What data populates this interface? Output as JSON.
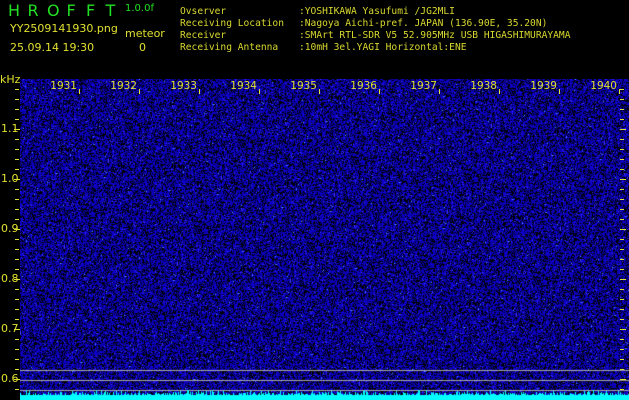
{
  "header": {
    "app_letters": [
      "H",
      "R",
      "O",
      "F",
      "F",
      "T"
    ],
    "version": "1.0.0f",
    "filename": "YY2509141930.png",
    "datetime": "25.09.14 19:30",
    "meteor_label": "meteor",
    "meteor_count": "0"
  },
  "info": [
    {
      "label": "Ovserver",
      "value": ":YOSHIKAWA Yasufumi /JG2MLI"
    },
    {
      "label": "Receiving Location",
      "value": ":Nagoya Aichi-pref. JAPAN (136.90E, 35.20N)"
    },
    {
      "label": "Receiver",
      "value": ":SMArt RTL-SDR V5 52.905MHz USB HIGASHIMURAYAMA"
    },
    {
      "label": "Receiving Antenna",
      "value": ":10mH 3el.YAGI Horizontal:ENE"
    }
  ],
  "spectrogram": {
    "y_unit": "kHz",
    "time_labels": [
      "1931",
      "1932",
      "1933",
      "1934",
      "1935",
      "1936",
      "1937",
      "1938",
      "1939",
      "1940"
    ],
    "freq_labels": [
      "1.1",
      "1.0",
      "0.9",
      "0.8",
      "0.7",
      "0.6"
    ],
    "colors": {
      "background": "#000000",
      "noise": "#1010c0",
      "bright": "#3ab0ff",
      "baseline": "#00ffff",
      "text": "#e0e030"
    }
  }
}
